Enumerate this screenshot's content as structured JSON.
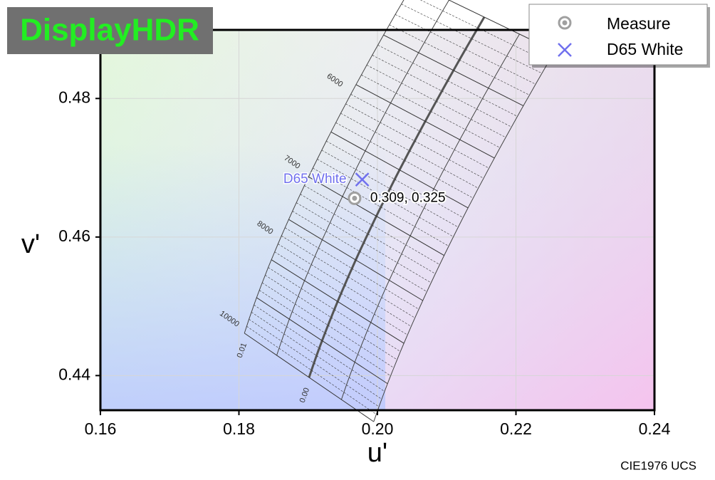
{
  "badge": "DisplayHDR",
  "footer": "CIE1976 UCS",
  "chart_data": {
    "type": "scatter",
    "xlabel": "u'",
    "ylabel": "v'",
    "xlim": [
      0.16,
      0.24
    ],
    "ylim": [
      0.435,
      0.4899
    ],
    "xticks": [
      0.16,
      0.18,
      {
        "value": 0.2,
        "label": "0.20"
      },
      0.22,
      0.24
    ],
    "yticks": [
      0.44,
      0.46,
      0.48
    ],
    "grid": true,
    "legend": "top-right",
    "series": [
      {
        "name": "Measure",
        "color": "#a0a0a0",
        "x": [
          0.1967
        ],
        "values": [
          0.4656
        ],
        "value_labels": [
          "0.309,  0.325"
        ]
      },
      {
        "name": "D65 White",
        "color": "#7070ee",
        "x": [
          0.1978
        ],
        "values": [
          0.4683
        ]
      }
    ],
    "cct_labels": [
      "6000",
      "7000",
      "8000",
      "10000"
    ],
    "duv_labels": [
      "0.01",
      "0.00"
    ]
  }
}
